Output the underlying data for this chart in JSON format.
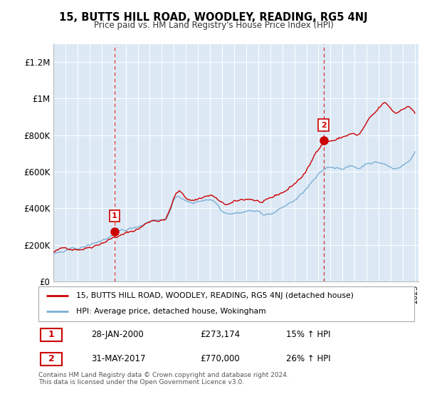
{
  "title": "15, BUTTS HILL ROAD, WOODLEY, READING, RG5 4NJ",
  "subtitle": "Price paid vs. HM Land Registry's House Price Index (HPI)",
  "legend_line1": "15, BUTTS HILL ROAD, WOODLEY, READING, RG5 4NJ (detached house)",
  "legend_line2": "HPI: Average price, detached house, Wokingham",
  "purchase1_date": "28-JAN-2000",
  "purchase1_price": 273174,
  "purchase1_label": "15%↑ HPI",
  "purchase1_pct": "15% ↑ HPI",
  "purchase2_date": "31-MAY-2017",
  "purchase2_price": 770000,
  "purchase2_label": "26%↑ HPI",
  "purchase2_pct": "26% ↑ HPI",
  "footer": "Contains HM Land Registry data © Crown copyright and database right 2024.\nThis data is licensed under the Open Government Licence v3.0.",
  "red_color": "#cc0000",
  "blue_color": "#7bafd4",
  "background_color": "#dce9f5",
  "ylim": [
    0,
    1300000
  ],
  "yticks": [
    0,
    200000,
    400000,
    600000,
    800000,
    1000000,
    1200000
  ],
  "ytick_labels": [
    "£0",
    "£200K",
    "£400K",
    "£600K",
    "£800K",
    "£1M",
    "£1.2M"
  ],
  "xmin": 1995.0,
  "xmax": 2025.3,
  "purchase1_x": 2000.08,
  "purchase2_x": 2017.42
}
